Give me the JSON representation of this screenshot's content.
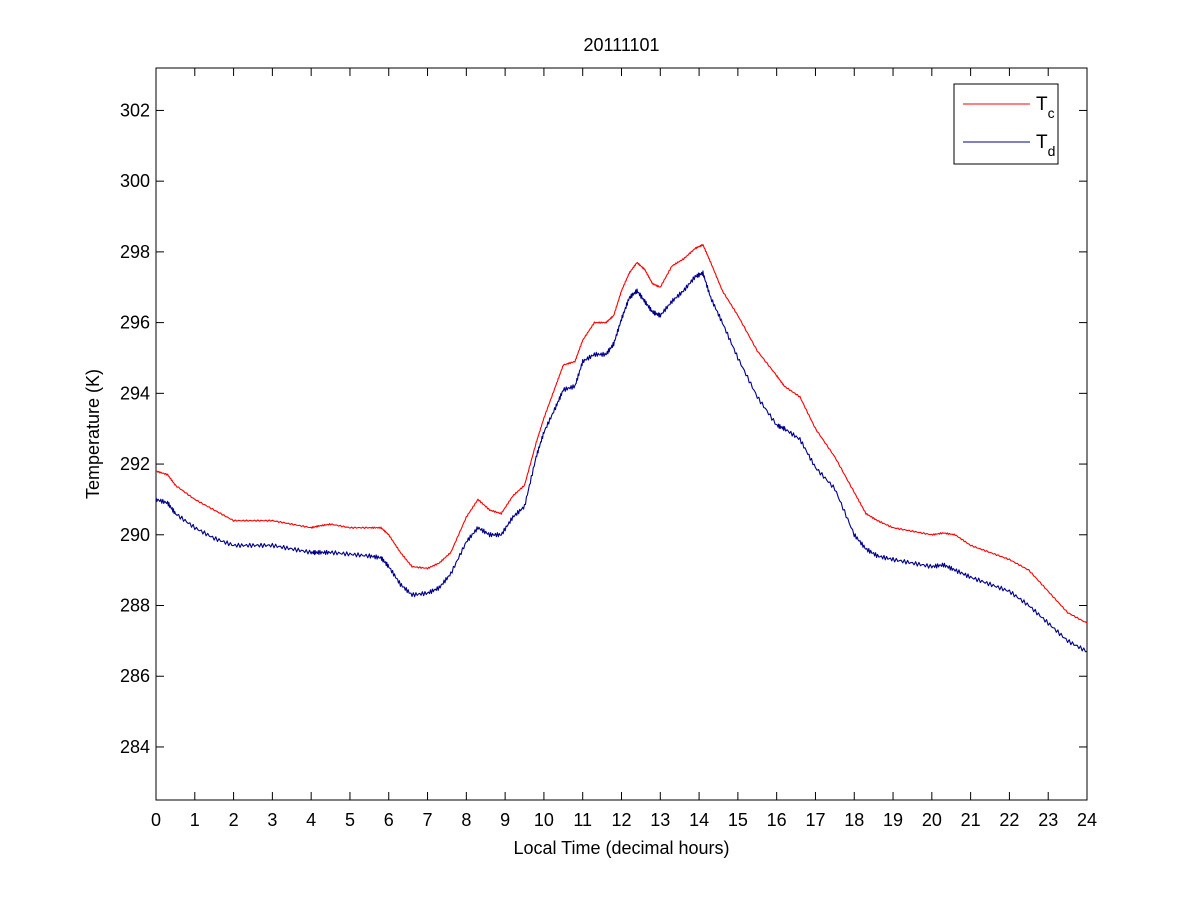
{
  "chart_data": {
    "type": "line",
    "title": "20111101",
    "xlabel": "Local Time (decimal hours)",
    "ylabel": "Temperature (K)",
    "xlim": [
      0,
      24
    ],
    "ylim": [
      282.5,
      303.2
    ],
    "xticks": [
      "0",
      "1",
      "2",
      "3",
      "4",
      "5",
      "6",
      "7",
      "8",
      "9",
      "10",
      "11",
      "12",
      "13",
      "14",
      "15",
      "16",
      "17",
      "18",
      "19",
      "20",
      "21",
      "22",
      "23",
      "24"
    ],
    "yticks": [
      "284",
      "286",
      "288",
      "290",
      "292",
      "294",
      "296",
      "298",
      "300",
      "302"
    ],
    "grid": false,
    "legend_position": "top-right",
    "series": [
      {
        "name": "T",
        "subscript": "c",
        "color": "#ff0000",
        "x": [
          0,
          0.3,
          0.5,
          1,
          1.5,
          2,
          2.5,
          3,
          3.5,
          4,
          4.2,
          4.5,
          5,
          5.5,
          5.8,
          6,
          6.3,
          6.6,
          7,
          7.3,
          7.6,
          8,
          8.3,
          8.6,
          8.9,
          9.2,
          9.5,
          9.8,
          10,
          10.3,
          10.5,
          10.8,
          11,
          11.3,
          11.6,
          11.8,
          12,
          12.2,
          12.4,
          12.6,
          12.8,
          13,
          13.3,
          13.6,
          13.9,
          14.1,
          14.3,
          14.6,
          15,
          15.5,
          16,
          16.2,
          16.6,
          17,
          17.5,
          18,
          18.3,
          18.6,
          19,
          19.5,
          20,
          20.3,
          20.6,
          21,
          21.5,
          22,
          22.5,
          23,
          23.5,
          24
        ],
        "values": [
          291.8,
          291.7,
          291.4,
          291.0,
          290.7,
          290.4,
          290.4,
          290.4,
          290.3,
          290.2,
          290.25,
          290.3,
          290.2,
          290.2,
          290.2,
          290.0,
          289.5,
          289.1,
          289.05,
          289.2,
          289.5,
          290.5,
          291.0,
          290.7,
          290.6,
          291.1,
          291.4,
          292.6,
          293.3,
          294.2,
          294.8,
          294.9,
          295.5,
          296.0,
          296.0,
          296.2,
          296.9,
          297.4,
          297.7,
          297.5,
          297.1,
          297.0,
          297.6,
          297.8,
          298.1,
          298.2,
          297.7,
          296.9,
          296.2,
          295.2,
          294.5,
          294.2,
          293.9,
          293.0,
          292.2,
          291.2,
          290.6,
          290.4,
          290.2,
          290.1,
          290.0,
          290.05,
          290.0,
          289.7,
          289.5,
          289.3,
          289.0,
          288.4,
          287.8,
          287.5
        ]
      },
      {
        "name": "T",
        "subscript": "d",
        "color": "#00008b",
        "x": [
          0,
          0.3,
          0.5,
          1,
          1.5,
          2,
          2.5,
          3,
          3.5,
          4,
          4.2,
          4.5,
          5,
          5.5,
          5.8,
          6,
          6.3,
          6.6,
          7,
          7.3,
          7.6,
          8,
          8.3,
          8.6,
          8.9,
          9.2,
          9.5,
          9.8,
          10,
          10.3,
          10.5,
          10.8,
          11,
          11.3,
          11.6,
          11.8,
          12,
          12.2,
          12.4,
          12.6,
          12.8,
          13,
          13.3,
          13.6,
          13.9,
          14.1,
          14.3,
          14.6,
          15,
          15.5,
          16,
          16.2,
          16.6,
          17,
          17.5,
          18,
          18.3,
          18.6,
          19,
          19.5,
          20,
          20.3,
          20.6,
          21,
          21.5,
          22,
          22.5,
          23,
          23.5,
          24
        ],
        "values": [
          291.0,
          290.9,
          290.6,
          290.2,
          289.9,
          289.7,
          289.7,
          289.7,
          289.6,
          289.5,
          289.5,
          289.5,
          289.45,
          289.4,
          289.35,
          289.1,
          288.6,
          288.3,
          288.35,
          288.5,
          288.9,
          289.8,
          290.2,
          290.0,
          290.0,
          290.5,
          290.8,
          292.2,
          292.9,
          293.6,
          294.1,
          294.2,
          294.9,
          295.1,
          295.1,
          295.4,
          296.1,
          296.7,
          296.9,
          296.6,
          296.3,
          296.2,
          296.6,
          296.9,
          297.3,
          297.4,
          296.7,
          296.0,
          295.0,
          293.9,
          293.1,
          293.0,
          292.7,
          291.9,
          291.3,
          290.0,
          289.6,
          289.4,
          289.3,
          289.2,
          289.1,
          289.15,
          289.0,
          288.8,
          288.6,
          288.4,
          288.0,
          287.5,
          287.0,
          286.7
        ]
      }
    ]
  }
}
